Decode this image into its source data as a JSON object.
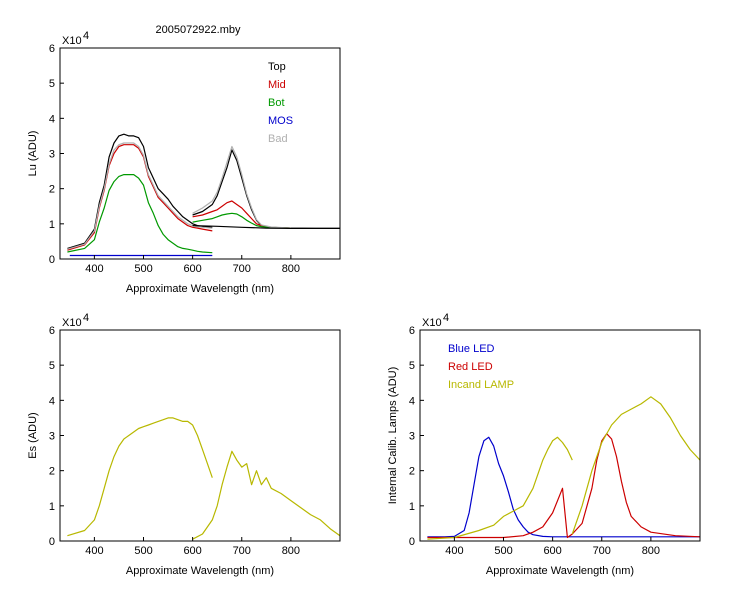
{
  "figure": {
    "title": "2005072922.mby",
    "scale_note": "X10",
    "scale_exp": "4"
  },
  "chart_data": [
    {
      "type": "line",
      "xlabel": "Approximate Wavelength (nm)",
      "ylabel": "Lu (ADU)",
      "xlim": [
        330,
        900
      ],
      "ylim": [
        0,
        6
      ],
      "y_unit_multiplier": 10000,
      "x_ticks": [
        400,
        500,
        600,
        700,
        800
      ],
      "y_ticks": [
        0,
        1,
        2,
        3,
        4,
        5,
        6
      ],
      "legend_position": "top-right",
      "series": [
        {
          "name": "Top",
          "color": "#000000",
          "x": [
            345,
            380,
            400,
            410,
            420,
            430,
            440,
            450,
            460,
            470,
            480,
            490,
            500,
            510,
            520,
            530,
            540,
            550,
            560,
            570,
            580,
            590,
            600,
            610,
            620,
            640
          ],
          "y": [
            0.3,
            0.45,
            0.85,
            1.6,
            2.1,
            2.9,
            3.3,
            3.5,
            3.55,
            3.5,
            3.5,
            3.45,
            3.2,
            2.6,
            2.3,
            2.0,
            1.85,
            1.7,
            1.5,
            1.35,
            1.2,
            1.1,
            1.0,
            0.95,
            0.92,
            0.9
          ]
        },
        {
          "name": "Mid",
          "color": "#cc0000",
          "x": [
            345,
            380,
            400,
            410,
            420,
            430,
            440,
            450,
            460,
            470,
            480,
            490,
            500,
            510,
            520,
            530,
            540,
            550,
            560,
            570,
            580,
            590,
            600,
            610,
            620,
            640
          ],
          "y": [
            0.25,
            0.4,
            0.75,
            1.45,
            1.95,
            2.65,
            3.0,
            3.2,
            3.25,
            3.25,
            3.25,
            3.15,
            2.9,
            2.35,
            2.05,
            1.75,
            1.6,
            1.45,
            1.3,
            1.15,
            1.05,
            0.95,
            0.9,
            0.88,
            0.85,
            0.8
          ]
        },
        {
          "name": "Bot",
          "color": "#009900",
          "x": [
            345,
            380,
            400,
            410,
            420,
            430,
            440,
            450,
            460,
            470,
            480,
            490,
            500,
            510,
            520,
            530,
            540,
            550,
            560,
            570,
            580,
            590,
            600,
            610,
            620,
            640
          ],
          "y": [
            0.2,
            0.3,
            0.55,
            1.05,
            1.45,
            1.95,
            2.2,
            2.35,
            2.4,
            2.4,
            2.4,
            2.3,
            2.1,
            1.6,
            1.3,
            0.95,
            0.7,
            0.55,
            0.45,
            0.35,
            0.3,
            0.28,
            0.25,
            0.22,
            0.2,
            0.18
          ]
        },
        {
          "name": "MOS",
          "color": "#0000cc",
          "x": [
            350,
            640
          ],
          "y": [
            0.1,
            0.1
          ]
        },
        {
          "name": "Bad",
          "color": "#b0b0b0",
          "x": [
            345,
            380,
            400,
            410,
            420,
            430,
            440,
            450,
            460,
            470,
            480,
            490,
            500,
            510,
            520,
            530,
            540,
            550,
            560,
            570,
            580,
            590,
            600,
            610,
            620,
            640
          ],
          "y": [
            0.28,
            0.42,
            0.8,
            1.5,
            2.0,
            2.7,
            3.1,
            3.25,
            3.3,
            3.3,
            3.3,
            3.2,
            2.95,
            2.4,
            2.1,
            1.8,
            1.65,
            1.5,
            1.35,
            1.2,
            1.1,
            1.0,
            0.95,
            0.92,
            0.9,
            0.88
          ]
        },
        {
          "name": "Top",
          "color": "#000000",
          "x": [
            600,
            620,
            640,
            650,
            660,
            670,
            680,
            690,
            700,
            710,
            720,
            730,
            740,
            760,
            800,
            850,
            900
          ],
          "y": [
            1.25,
            1.35,
            1.55,
            1.8,
            2.2,
            2.6,
            3.1,
            2.8,
            2.3,
            1.8,
            1.4,
            1.1,
            0.95,
            0.9,
            0.88,
            0.87,
            0.87
          ]
        },
        {
          "name": "Mid",
          "color": "#cc0000",
          "x": [
            600,
            620,
            640,
            650,
            660,
            670,
            680,
            690,
            700,
            710,
            720,
            730,
            740,
            760,
            800
          ],
          "y": [
            1.2,
            1.25,
            1.35,
            1.4,
            1.5,
            1.6,
            1.65,
            1.55,
            1.45,
            1.3,
            1.15,
            1.0,
            0.95,
            0.9,
            0.88
          ]
        },
        {
          "name": "Bot",
          "color": "#009900",
          "x": [
            600,
            620,
            640,
            650,
            660,
            670,
            680,
            690,
            700,
            710,
            720,
            730,
            740,
            760,
            800
          ],
          "y": [
            1.05,
            1.1,
            1.15,
            1.2,
            1.25,
            1.28,
            1.3,
            1.28,
            1.2,
            1.1,
            1.02,
            0.95,
            0.92,
            0.9,
            0.88
          ]
        },
        {
          "name": "Bad",
          "color": "#b0b0b0",
          "x": [
            600,
            620,
            640,
            650,
            660,
            670,
            680,
            690,
            700,
            710,
            720,
            730,
            740,
            760,
            800
          ],
          "y": [
            1.3,
            1.45,
            1.65,
            1.9,
            2.3,
            2.75,
            3.2,
            2.9,
            2.4,
            1.85,
            1.45,
            1.12,
            0.97,
            0.91,
            0.88
          ]
        },
        {
          "name": "MOS",
          "color": "#000000",
          "x": [
            600,
            650,
            700,
            750,
            800,
            850,
            900
          ],
          "y": [
            0.95,
            0.93,
            0.9,
            0.88,
            0.87,
            0.87,
            0.87
          ]
        }
      ]
    },
    {
      "type": "line",
      "xlabel": "Approximate Wavelength (nm)",
      "ylabel": "Es (ADU)",
      "xlim": [
        330,
        900
      ],
      "ylim": [
        0,
        6
      ],
      "y_unit_multiplier": 10000,
      "x_ticks": [
        400,
        500,
        600,
        700,
        800
      ],
      "y_ticks": [
        0,
        1,
        2,
        3,
        4,
        5,
        6
      ],
      "series": [
        {
          "name": "",
          "color": "#b8b800",
          "x": [
            345,
            380,
            400,
            410,
            420,
            430,
            440,
            450,
            460,
            470,
            480,
            490,
            500,
            510,
            520,
            530,
            540,
            550,
            560,
            570,
            580,
            590,
            600,
            610,
            620,
            630,
            640
          ],
          "y": [
            0.15,
            0.3,
            0.6,
            1.0,
            1.5,
            2.0,
            2.4,
            2.7,
            2.9,
            3.0,
            3.1,
            3.2,
            3.25,
            3.3,
            3.35,
            3.4,
            3.45,
            3.5,
            3.5,
            3.45,
            3.4,
            3.4,
            3.3,
            3.0,
            2.6,
            2.2,
            1.8
          ]
        },
        {
          "name": "",
          "color": "#b8b800",
          "x": [
            600,
            620,
            640,
            650,
            660,
            670,
            680,
            690,
            700,
            710,
            720,
            730,
            740,
            750,
            760,
            780,
            800,
            820,
            840,
            860,
            880,
            900
          ],
          "y": [
            0.05,
            0.2,
            0.6,
            1.0,
            1.6,
            2.1,
            2.55,
            2.3,
            2.1,
            2.2,
            1.6,
            2.0,
            1.6,
            1.8,
            1.5,
            1.35,
            1.15,
            0.95,
            0.75,
            0.6,
            0.35,
            0.15
          ]
        }
      ]
    },
    {
      "type": "line",
      "xlabel": "Approximate Wavelength (nm)",
      "ylabel": "Internal Calib. Lamps (ADU)",
      "xlim": [
        330,
        900
      ],
      "ylim": [
        0,
        6
      ],
      "y_unit_multiplier": 10000,
      "x_ticks": [
        400,
        500,
        600,
        700,
        800
      ],
      "y_ticks": [
        0,
        1,
        2,
        3,
        4,
        5,
        6
      ],
      "legend_position": "top-left",
      "series": [
        {
          "name": "Blue LED",
          "color": "#0000cc",
          "x": [
            345,
            380,
            400,
            420,
            430,
            440,
            450,
            460,
            470,
            480,
            490,
            500,
            510,
            520,
            530,
            540,
            550,
            560,
            580,
            600,
            640,
            700,
            800,
            900
          ],
          "y": [
            0.12,
            0.12,
            0.13,
            0.3,
            0.8,
            1.6,
            2.4,
            2.85,
            2.95,
            2.7,
            2.2,
            1.85,
            1.4,
            0.9,
            0.6,
            0.4,
            0.25,
            0.18,
            0.13,
            0.12,
            0.12,
            0.12,
            0.12,
            0.12
          ]
        },
        {
          "name": "Red LED",
          "color": "#cc0000",
          "x": [
            345,
            500,
            540,
            560,
            580,
            600,
            620,
            630,
            640,
            660,
            680,
            690,
            700,
            710,
            720,
            730,
            740,
            750,
            760,
            780,
            800,
            850,
            900
          ],
          "y": [
            0.1,
            0.1,
            0.15,
            0.25,
            0.4,
            0.8,
            1.5,
            0.1,
            0.2,
            0.5,
            1.5,
            2.3,
            2.85,
            3.05,
            2.9,
            2.4,
            1.7,
            1.1,
            0.7,
            0.4,
            0.25,
            0.15,
            0.12
          ]
        },
        {
          "name": "Incand LAMP",
          "color": "#b8b800",
          "x": [
            345,
            400,
            450,
            480,
            500,
            520,
            540,
            560,
            570,
            580,
            590,
            600,
            610,
            620,
            630,
            640
          ],
          "y": [
            0.05,
            0.1,
            0.3,
            0.45,
            0.7,
            0.85,
            1.0,
            1.5,
            1.9,
            2.3,
            2.6,
            2.85,
            2.95,
            2.8,
            2.6,
            2.3
          ]
        },
        {
          "name": "",
          "color": "#b8b800",
          "x": [
            640,
            660,
            680,
            700,
            720,
            740,
            760,
            780,
            800,
            820,
            840,
            860,
            880,
            900
          ],
          "y": [
            0.2,
            1.0,
            2.0,
            2.8,
            3.3,
            3.6,
            3.75,
            3.9,
            4.1,
            3.9,
            3.5,
            3.0,
            2.6,
            2.3
          ]
        }
      ]
    }
  ]
}
